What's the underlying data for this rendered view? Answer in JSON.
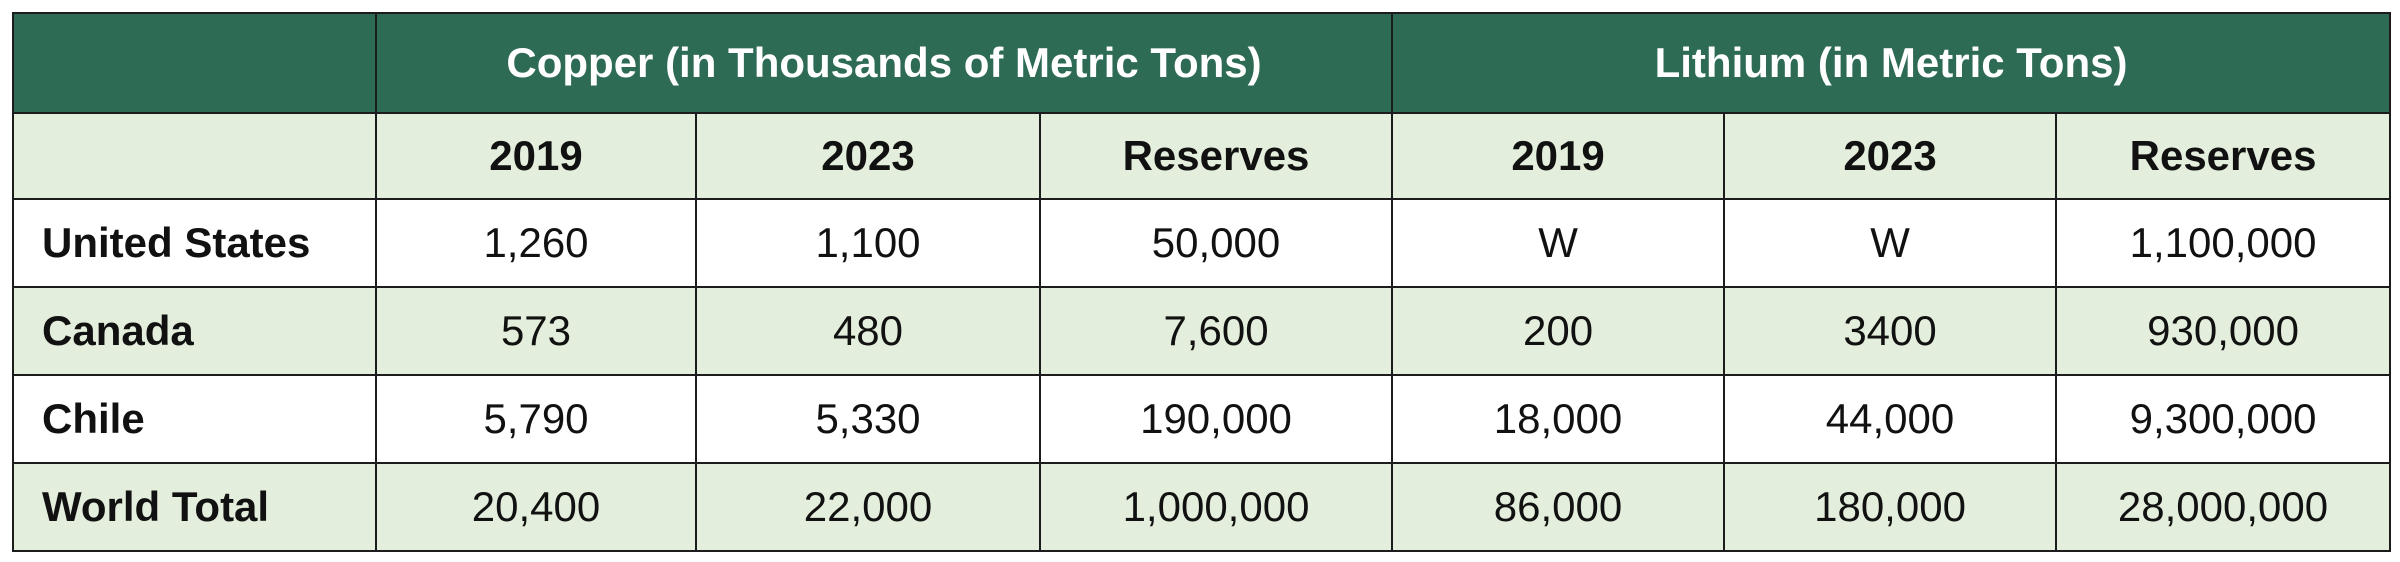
{
  "table": {
    "corner": "",
    "groups": [
      {
        "label": "Copper (in Thousands of Metric Tons)"
      },
      {
        "label": "Lithium (in Metric Tons)"
      }
    ],
    "subheaders": [
      "2019",
      "2023",
      "Reserves",
      "2019",
      "2023",
      "Reserves"
    ],
    "rows": [
      {
        "label": "United States",
        "cells": [
          "1,260",
          "1,100",
          "50,000",
          "W",
          "W",
          "1,100,000"
        ]
      },
      {
        "label": "Canada",
        "cells": [
          "573",
          "480",
          "7,600",
          "200",
          "3400",
          "930,000"
        ]
      },
      {
        "label": "Chile",
        "cells": [
          "5,790",
          "5,330",
          "190,000",
          "18,000",
          "44,000",
          "9,300,000"
        ]
      },
      {
        "label": "World Total",
        "cells": [
          "20,400",
          "22,000",
          "1,000,000",
          "86,000",
          "180,000",
          "28,000,000"
        ]
      }
    ]
  },
  "colors": {
    "header_green": "#2e6b55",
    "alt_row_green": "#e4eedc",
    "border": "#1c1c1c"
  }
}
